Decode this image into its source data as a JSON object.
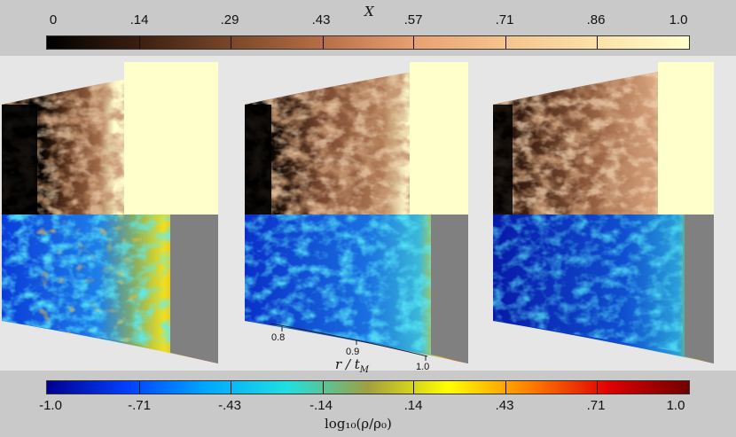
{
  "top_colorbar": {
    "title": "X",
    "ticks": [
      "0",
      ".14",
      ".29",
      ".43",
      ".57",
      ".71",
      ".86",
      "1.0"
    ],
    "colors": [
      "#000000",
      "#3a1f10",
      "#7a4628",
      "#b86e45",
      "#e9a070",
      "#f6c48c",
      "#fbe2a9",
      "#ffffcc"
    ]
  },
  "bottom_colorbar": {
    "title": "log₁₀(ρ/ρ₀)",
    "ticks": [
      "-1.0",
      "-.71",
      "-.43",
      "-.14",
      ".14",
      ".43",
      ".71",
      "1.0"
    ],
    "colors": [
      "#000090",
      "#0040ff",
      "#00a8ff",
      "#20e0e0",
      "#a0a040",
      "#ffff00",
      "#ff8000",
      "#e00000",
      "#700000"
    ]
  },
  "axis": {
    "title": "r / t",
    "title_subscript": "M",
    "labels": [
      "0.8",
      "0.9",
      "1.0"
    ]
  },
  "panels": [
    "panel-left",
    "panel-center",
    "panel-right"
  ]
}
